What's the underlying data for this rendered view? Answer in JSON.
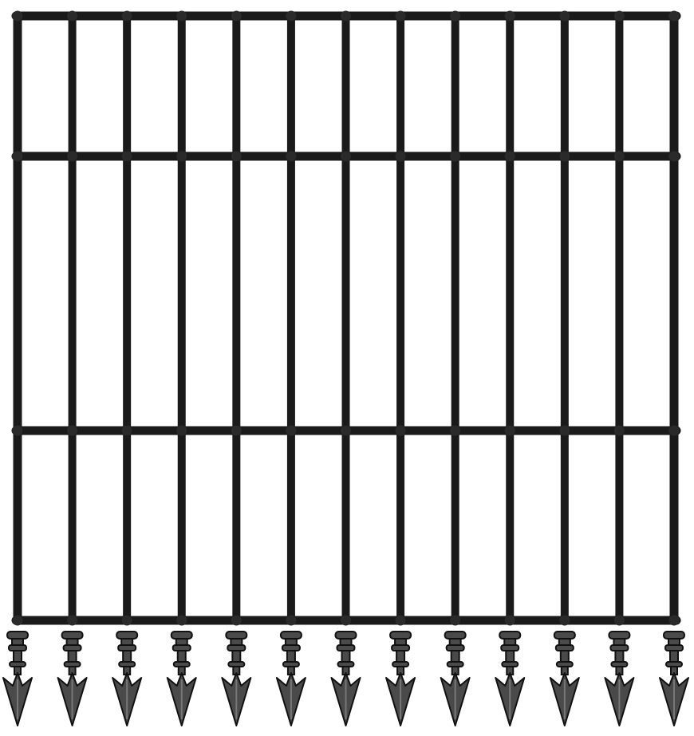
{
  "figure": {
    "subject": "gate",
    "bar_color": "#1a1a1a",
    "spike_color": "#4a4a4a",
    "background_color": "#ffffff",
    "vertical_bar_count": 13,
    "rail_count": 4,
    "spike_count": 13
  }
}
